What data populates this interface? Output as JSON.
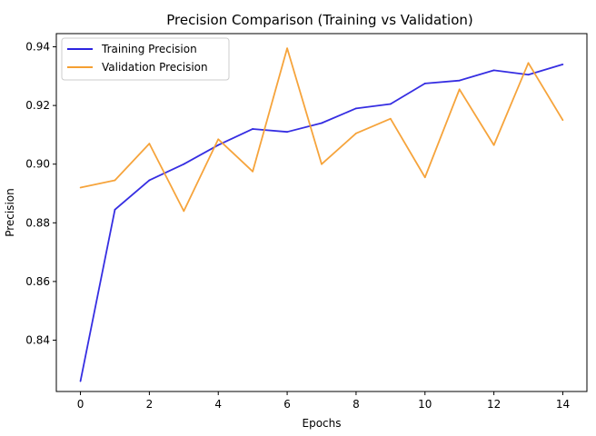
{
  "chart_data": {
    "type": "line",
    "title": "Precision Comparison (Training vs Validation)",
    "xlabel": "Epochs",
    "ylabel": "Precision",
    "x": [
      0,
      1,
      2,
      3,
      4,
      5,
      6,
      7,
      8,
      9,
      10,
      11,
      12,
      13,
      14
    ],
    "xlim": [
      -0.7,
      14.7
    ],
    "ylim": [
      0.8225,
      0.9445
    ],
    "xticks": [
      "0",
      "2",
      "4",
      "6",
      "8",
      "10",
      "12",
      "14"
    ],
    "yticks": [
      "0.84",
      "0.86",
      "0.88",
      "0.90",
      "0.92",
      "0.94"
    ],
    "grid": false,
    "legend_position": "top-left",
    "series": [
      {
        "name": "Training Precision",
        "color": "#2b23e0",
        "values": [
          0.826,
          0.8845,
          0.8945,
          0.9,
          0.9065,
          0.912,
          0.911,
          0.914,
          0.919,
          0.9205,
          0.9275,
          0.9285,
          0.932,
          0.9305,
          0.934
        ]
      },
      {
        "name": "Validation Precision",
        "color": "#f59f32",
        "values": [
          0.892,
          0.8945,
          0.907,
          0.884,
          0.9085,
          0.8975,
          0.9395,
          0.9,
          0.9105,
          0.9155,
          0.8955,
          0.9255,
          0.9065,
          0.9345,
          0.915
        ]
      }
    ]
  }
}
